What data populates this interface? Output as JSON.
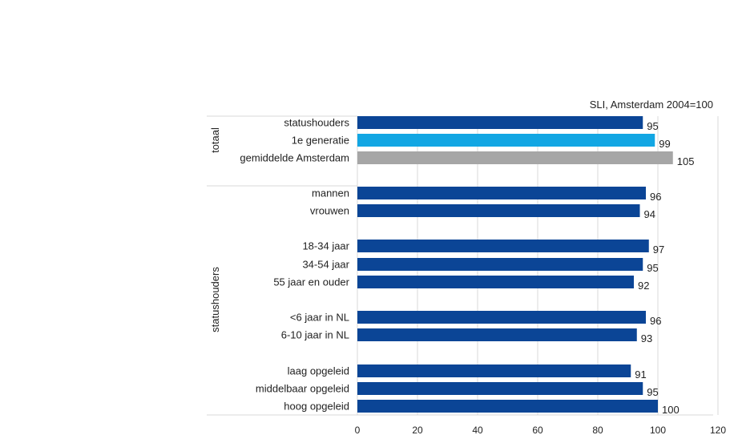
{
  "chart_data": {
    "type": "bar",
    "orientation": "horizontal",
    "title": "SLI, Amsterdam 2004=100",
    "xlim": [
      0,
      120
    ],
    "x_ticks": [
      0,
      20,
      40,
      60,
      80,
      100,
      120
    ],
    "grid": true,
    "legend": "none",
    "groups": [
      {
        "label": "totaal",
        "rows": [
          0,
          1,
          2
        ]
      },
      {
        "label": "statushouders",
        "rows": [
          3,
          4,
          5,
          6,
          7,
          8,
          9,
          10,
          11,
          12
        ]
      }
    ],
    "rows": [
      {
        "label": "statushouders",
        "value": 95,
        "color": "#0b4596"
      },
      {
        "label": "1e generatie",
        "value": 99,
        "color": "#12a6e3"
      },
      {
        "label": "gemiddelde Amsterdam",
        "value": 105,
        "color": "#a6a6a6"
      },
      {
        "label": "mannen",
        "value": 96,
        "color": "#0b4596"
      },
      {
        "label": "vrouwen",
        "value": 94,
        "color": "#0b4596"
      },
      {
        "label": "18-34 jaar",
        "value": 97,
        "color": "#0b4596"
      },
      {
        "label": "34-54 jaar",
        "value": 95,
        "color": "#0b4596"
      },
      {
        "label": "55 jaar en ouder",
        "value": 92,
        "color": "#0b4596"
      },
      {
        "label": "<6 jaar in NL",
        "value": 96,
        "color": "#0b4596"
      },
      {
        "label": "6-10 jaar in NL",
        "value": 93,
        "color": "#0b4596"
      },
      {
        "label": "laag opgeleid",
        "value": 91,
        "color": "#0b4596"
      },
      {
        "label": "middelbaar opgeleid",
        "value": 95,
        "color": "#0b4596"
      },
      {
        "label": "hoog opgeleid",
        "value": 100,
        "color": "#0b4596"
      }
    ]
  }
}
